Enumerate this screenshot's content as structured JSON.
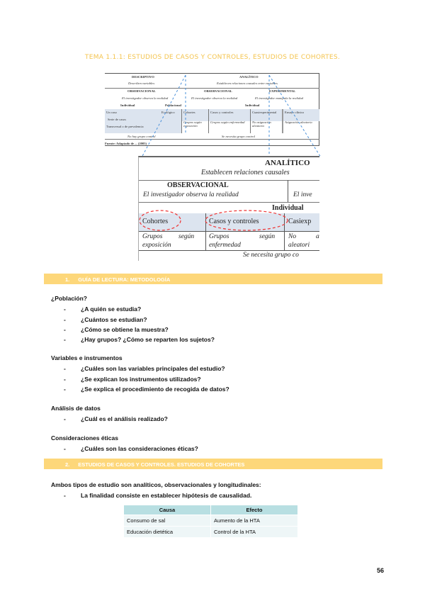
{
  "title": "TEMA 1.1.1: ESTUDIOS DE CASOS Y CONTROLES, ESTUDIOS DE COHORTES.",
  "figure": {
    "descriptivo": "DESCRIPTIVO",
    "describen": "Describen variables",
    "analitico": "ANALÍTICO",
    "establecen": "Establecen relaciones causales entre variables",
    "observacional": "OBSERVACIONAL",
    "observacional2": "OBSERVACIONAL",
    "experimental": "EXPERIMENTAL",
    "observa": "El investigador observa la realidad",
    "manipula": "El investigador manipula la realidad",
    "individual": "Individual",
    "poblacional": "Poblacional",
    "un_caso": "Un caso",
    "serie": "Serie de casos",
    "transversal": "Transversal o de prevalencia",
    "ecologico": "Ecológico",
    "cohortes": "Cohortes",
    "casos": "Casos y controles",
    "cuasi": "Cuasiexperimental",
    "ensayo": "Ensayo clínico",
    "g_exp": "Grupos según exposición",
    "g_enf": "Grupos según enfermedad",
    "no_asig": "No asignación aleatoria",
    "asig": "Asignación aleatoria",
    "no_control": "No hay grupo control",
    "control": "Se necesita grupo control",
    "fuente": "Fuente: Adaptado de ... (2005)",
    "zoom": {
      "analitico": "ANALÍTICO",
      "establecen": "Establecen relaciones causales",
      "observacional": "OBSERVACIONAL",
      "observa": "El investigador observa la realidad",
      "inv": "El inve",
      "individual": "Individual",
      "cohortes": "Cohortes",
      "casos": "Casos y controles",
      "casiexp": "Casiexp",
      "g1a": "Grupos",
      "g1b": "según",
      "g1c": "exposición",
      "g2a": "Grupos",
      "g2b": "según",
      "g2c": "enfermedad",
      "no": "No",
      "a": "a",
      "aleatori": "aleatori",
      "control": "Se necesita grupo co"
    }
  },
  "section1": {
    "number": "1.",
    "label": "GUÍA DE LECTURA: METODOLOGÍA"
  },
  "poblacion": {
    "heading": "¿Población?",
    "items": [
      "¿A quién se estudia?",
      "¿Cuántos se estudian?",
      "¿Cómo se obtiene la muestra?",
      "¿Hay grupos? ¿Cómo se reparten los sujetos?"
    ]
  },
  "variables": {
    "heading": "Variables e instrumentos",
    "items": [
      "¿Cuáles son las variables principales del estudio?",
      "¿Se explican los instrumentos utilizados?",
      "¿Se explica el procedimiento de recogida de datos?"
    ]
  },
  "analisis": {
    "heading": "Análisis de datos",
    "items": [
      "¿Cuál es el análisis realizado?"
    ]
  },
  "eticas": {
    "heading": "Consideraciones éticas",
    "items": [
      "¿Cuáles son las consideraciones éticas?"
    ]
  },
  "section2": {
    "number": "2.",
    "label": "ESTUDIOS DE CASOS Y CONTROLES. ESTUDIOS DE COHORTES"
  },
  "ambos": "Ambos tipos de estudio son analíticos, observacionales y longitudinales:",
  "finalidad": "La finalidad consiste en establecer hipótesis de causalidad.",
  "table": {
    "headers": [
      "Causa",
      "Efecto"
    ],
    "rows": [
      [
        "Consumo de sal",
        "Aumento de la HTA"
      ],
      [
        "Educación dietética",
        "Control de la HTA"
      ]
    ]
  },
  "page_number": "56",
  "colors": {
    "accent": "#fdd77a",
    "title": "#f4c44e",
    "table_header": "#b8dfe2"
  }
}
